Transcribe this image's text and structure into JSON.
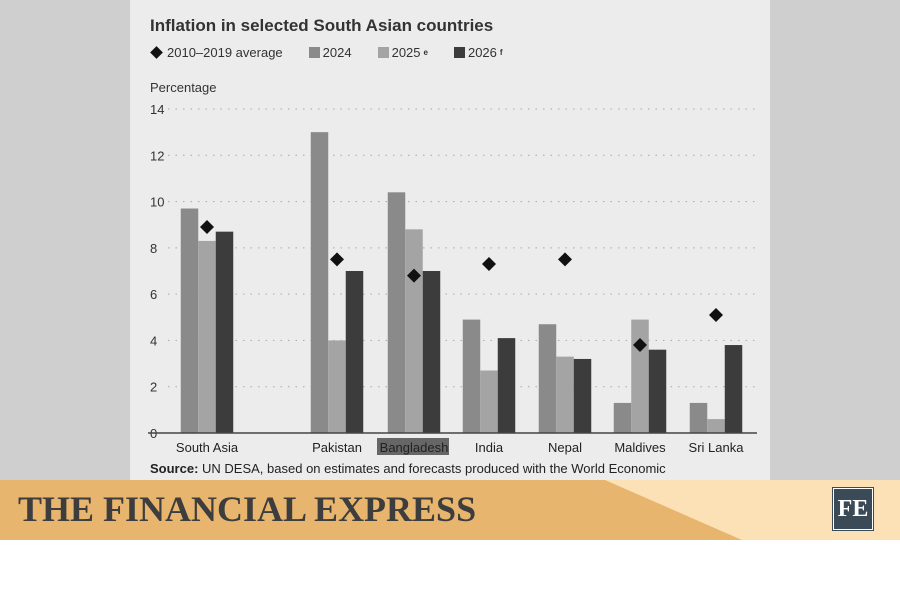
{
  "chart_data": {
    "type": "bar",
    "title": "Inflation in selected South Asian countries",
    "ylabel": "Percentage",
    "xlabel": "",
    "ylim": [
      0,
      14
    ],
    "yticks": [
      "0",
      "2",
      "4",
      "6",
      "8",
      "10",
      "12",
      "14"
    ],
    "grid": true,
    "legend_position": "top-left",
    "categories": [
      "South Asia",
      "Pakistan",
      "Bangladesh",
      "India",
      "Nepal",
      "Maldives",
      "Sri Lanka"
    ],
    "highlighted_category": "Bangladesh",
    "series": [
      {
        "name": "2024",
        "type": "bar",
        "color": "#8a8a8a",
        "values": [
          9.7,
          13.0,
          10.4,
          4.9,
          4.7,
          1.3,
          1.3
        ]
      },
      {
        "name": "2025",
        "superscript": "e",
        "type": "bar",
        "color": "#a4a4a4",
        "values": [
          8.3,
          4.0,
          8.8,
          2.7,
          3.3,
          4.9,
          0.6
        ]
      },
      {
        "name": "2026",
        "superscript": "f",
        "type": "bar",
        "color": "#3c3c3c",
        "values": [
          8.7,
          7.0,
          7.0,
          4.1,
          3.2,
          3.6,
          3.8
        ]
      },
      {
        "name": "2010–2019 average",
        "type": "marker",
        "marker": "diamond",
        "color": "#111111",
        "values": [
          8.9,
          7.5,
          6.8,
          7.3,
          7.5,
          3.8,
          5.1
        ]
      }
    ],
    "source_label": "Source:",
    "source_text": " UN DESA, based on estimates and forecasts produced with the World Economic"
  },
  "banner": {
    "brand": "THE FINANCIAL EXPRESS",
    "logo": "FE",
    "colors": {
      "left": "#e8b56e",
      "right": "#fde1b6",
      "logo_bg": "#3a4a56"
    }
  }
}
